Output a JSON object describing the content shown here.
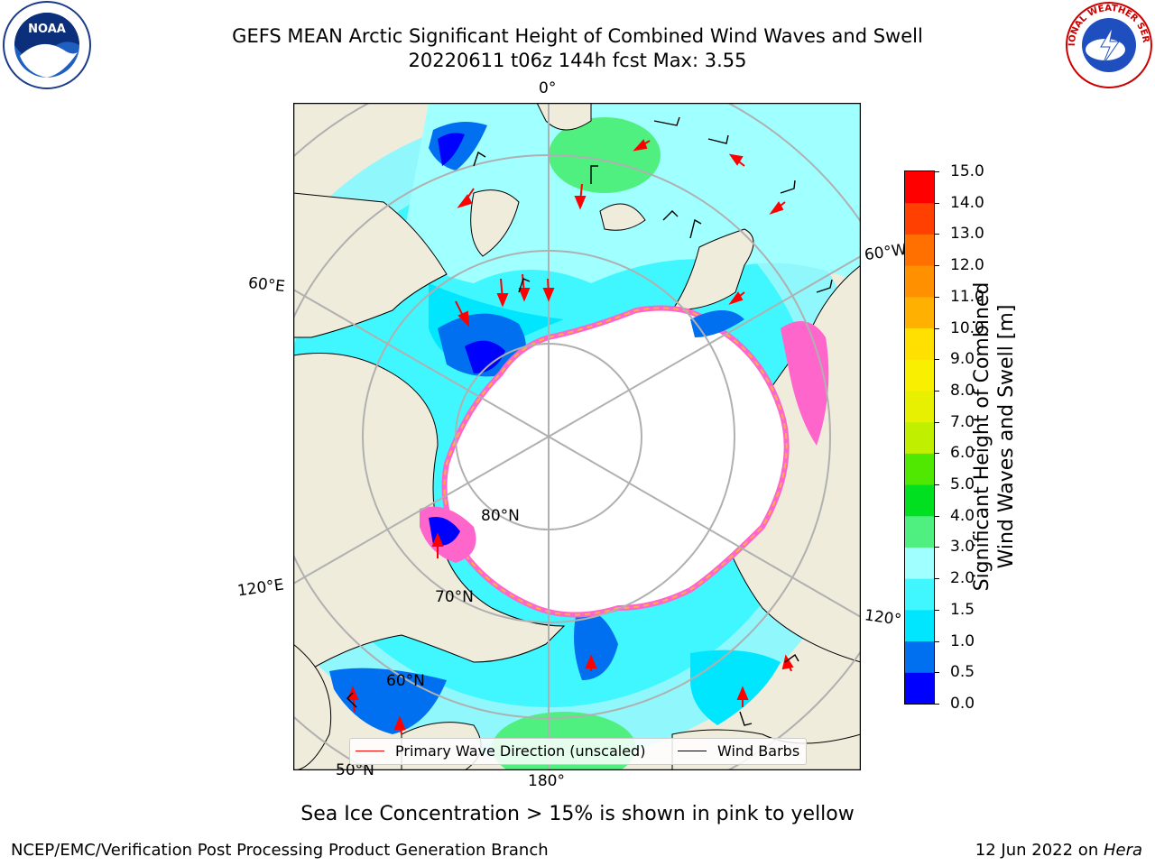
{
  "header": {
    "title_line1": "GEFS MEAN Arctic Significant Height of Combined Wind Waves and Swell",
    "title_line2": "20220611 t06z 144h fcst   Max: 3.55"
  },
  "logos": {
    "left": "NOAA",
    "right": "NATIONAL WEATHER SERVICE"
  },
  "map": {
    "projection": "north polar stereographic",
    "meridian_labels": {
      "m0": "0°",
      "m60e": "60°E",
      "m120e": "120°E",
      "m180": "180°",
      "m120w": "120°",
      "m60w": "60°W"
    },
    "parallel_labels": {
      "p80": "80°N",
      "p70": "70°N",
      "p60": "60°N",
      "p50": "50°N"
    },
    "colors": {
      "land": "#efecdc",
      "ice": "#ffffff",
      "grid": "#b0b0b0",
      "arrow": "#ff0000",
      "barb": "#000000"
    }
  },
  "legend": {
    "wave_direction": "Primary Wave Direction (unscaled)",
    "wind_barbs": "Wind Barbs"
  },
  "colorbar": {
    "label_line1": "Significant Height of Combined",
    "label_line2": "Wind Waves and Swell [m]",
    "ticks": [
      "0.0",
      "0.5",
      "1.0",
      "1.5",
      "2.0",
      "3.0",
      "4.0",
      "5.0",
      "6.0",
      "7.0",
      "8.0",
      "9.0",
      "10.0",
      "11.0",
      "12.0",
      "13.0",
      "14.0",
      "15.0"
    ],
    "bins": [
      {
        "from": "0.0",
        "to": "0.5",
        "color": "#0000ff"
      },
      {
        "from": "0.5",
        "to": "1.0",
        "color": "#0070f0"
      },
      {
        "from": "1.0",
        "to": "1.5",
        "color": "#00e6ff"
      },
      {
        "from": "1.5",
        "to": "2.0",
        "color": "#40f6ff"
      },
      {
        "from": "2.0",
        "to": "3.0",
        "color": "#a0ffff"
      },
      {
        "from": "3.0",
        "to": "4.0",
        "color": "#50f080"
      },
      {
        "from": "4.0",
        "to": "5.0",
        "color": "#00e020"
      },
      {
        "from": "5.0",
        "to": "6.0",
        "color": "#50e800"
      },
      {
        "from": "6.0",
        "to": "7.0",
        "color": "#c0f000"
      },
      {
        "from": "7.0",
        "to": "8.0",
        "color": "#e6f000"
      },
      {
        "from": "8.0",
        "to": "9.0",
        "color": "#f8f000"
      },
      {
        "from": "9.0",
        "to": "10.0",
        "color": "#ffe000"
      },
      {
        "from": "10.0",
        "to": "11.0",
        "color": "#ffb000"
      },
      {
        "from": "11.0",
        "to": "12.0",
        "color": "#ff9000"
      },
      {
        "from": "12.0",
        "to": "13.0",
        "color": "#ff7000"
      },
      {
        "from": "13.0",
        "to": "14.0",
        "color": "#ff4000"
      },
      {
        "from": "14.0",
        "to": "15.0",
        "color": "#ff0000"
      }
    ]
  },
  "note": "Sea Ice Concentration > 15% is shown in pink to yellow",
  "footer": {
    "left": "NCEP/EMC/Verification Post Processing Product Generation Branch",
    "right_date": "12 Jun 2022 on ",
    "right_host": "Hera"
  }
}
